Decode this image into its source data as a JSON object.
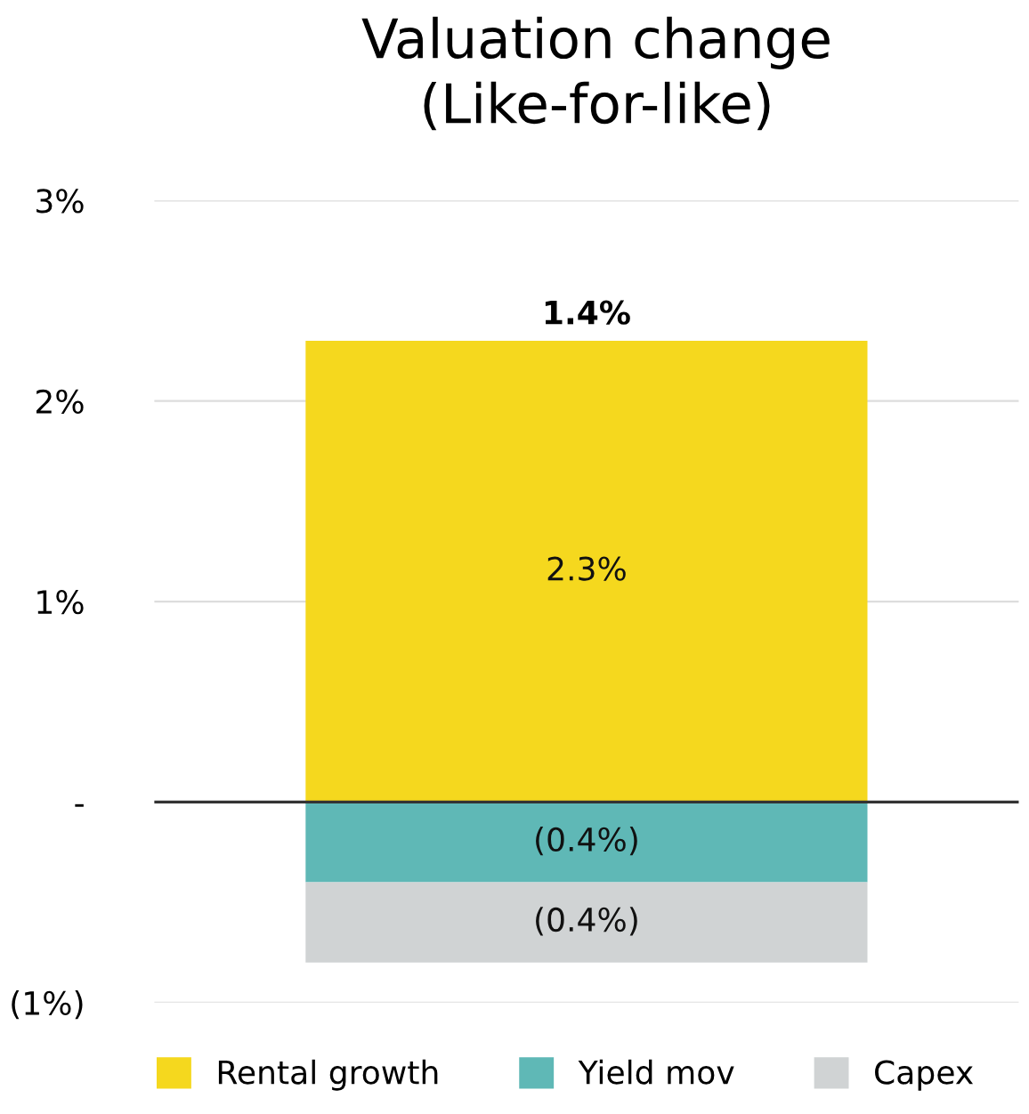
{
  "chart_data": {
    "type": "bar",
    "title": "Valuation change\n(Like-for-like)",
    "categories": [
      null
    ],
    "stacked": true,
    "series": [
      {
        "name": "Rental growth",
        "color": "#f5d81e",
        "values": [
          2.3
        ],
        "value_labels": [
          "2.3%"
        ]
      },
      {
        "name": "Yield mov",
        "color": "#5fb8b6",
        "values": [
          -0.4
        ],
        "value_labels": [
          "(0.4%)"
        ]
      },
      {
        "name": "Capex",
        "color": "#d0d3d4",
        "values": [
          -0.4
        ],
        "value_labels": [
          "(0.4%)"
        ]
      }
    ],
    "totals": [
      "1.4%"
    ],
    "ylim": [
      -1,
      3
    ],
    "yticks": [
      {
        "value": -1,
        "label": "(1%)"
      },
      {
        "value": 0,
        "label": "-"
      },
      {
        "value": 1,
        "label": "1%"
      },
      {
        "value": 2,
        "label": "2%"
      },
      {
        "value": 3,
        "label": "3%"
      }
    ],
    "ref_lines": [
      {
        "axis": "y",
        "value": 0,
        "color": "#333333"
      }
    ],
    "grid": "y",
    "legend": "bottom"
  }
}
